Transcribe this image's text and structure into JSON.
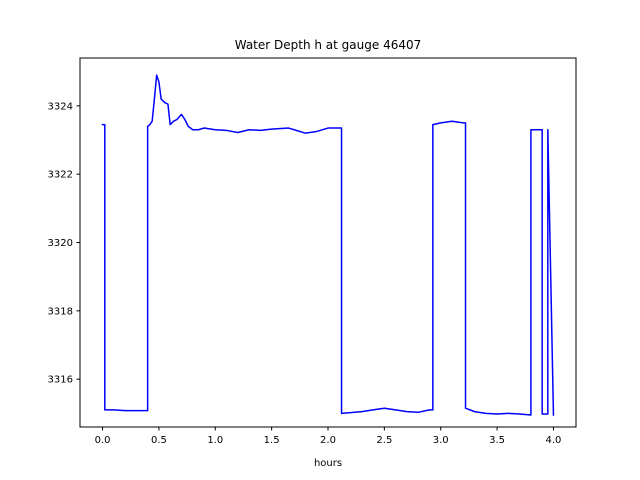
{
  "chart_data": {
    "type": "line",
    "title": "Water Depth h at gauge 46407",
    "xlabel": "hours",
    "ylabel": "",
    "xlim": [
      -0.2,
      4.2
    ],
    "ylim": [
      3314.6,
      3325.4
    ],
    "xticks": [
      0.0,
      0.5,
      1.0,
      1.5,
      2.0,
      2.5,
      3.0,
      3.5,
      4.0
    ],
    "xtick_labels": [
      "0.0",
      "0.5",
      "1.0",
      "1.5",
      "2.0",
      "2.5",
      "3.0",
      "3.5",
      "4.0"
    ],
    "yticks": [
      3316,
      3318,
      3320,
      3322,
      3324
    ],
    "ytick_labels": [
      "3316",
      "3318",
      "3320",
      "3322",
      "3324"
    ],
    "grid": false,
    "series": [
      {
        "color": "#0000ff",
        "x": [
          0.0,
          0.02,
          0.02,
          0.1,
          0.2,
          0.3,
          0.38,
          0.4,
          0.4,
          0.42,
          0.44,
          0.46,
          0.48,
          0.5,
          0.52,
          0.55,
          0.58,
          0.6,
          0.63,
          0.66,
          0.7,
          0.73,
          0.76,
          0.8,
          0.85,
          0.9,
          1.0,
          1.1,
          1.2,
          1.3,
          1.4,
          1.5,
          1.6,
          1.65,
          1.7,
          1.8,
          1.9,
          2.0,
          2.05,
          2.12,
          2.12,
          2.2,
          2.3,
          2.4,
          2.5,
          2.6,
          2.7,
          2.8,
          2.9,
          2.93,
          2.93,
          3.0,
          3.1,
          3.2,
          3.22,
          3.22,
          3.3,
          3.4,
          3.5,
          3.6,
          3.7,
          3.8,
          3.8,
          3.9,
          3.9,
          3.95,
          3.95,
          4.0
        ],
        "y": [
          3323.45,
          3323.45,
          3315.1,
          3315.1,
          3315.08,
          3315.08,
          3315.08,
          3315.08,
          3323.4,
          3323.45,
          3323.55,
          3324.2,
          3324.9,
          3324.7,
          3324.2,
          3324.1,
          3324.05,
          3323.45,
          3323.55,
          3323.6,
          3323.75,
          3323.6,
          3323.4,
          3323.3,
          3323.3,
          3323.35,
          3323.3,
          3323.28,
          3323.22,
          3323.3,
          3323.28,
          3323.32,
          3323.34,
          3323.35,
          3323.3,
          3323.2,
          3323.25,
          3323.35,
          3323.35,
          3323.35,
          3315.0,
          3315.02,
          3315.05,
          3315.1,
          3315.15,
          3315.1,
          3315.05,
          3315.03,
          3315.1,
          3315.1,
          3323.45,
          3323.5,
          3323.55,
          3323.5,
          3323.5,
          3315.15,
          3315.05,
          3315.0,
          3314.98,
          3315.0,
          3314.98,
          3314.95,
          3323.3,
          3323.3,
          3314.98,
          3314.98,
          3323.3,
          3314.95
        ]
      }
    ]
  }
}
